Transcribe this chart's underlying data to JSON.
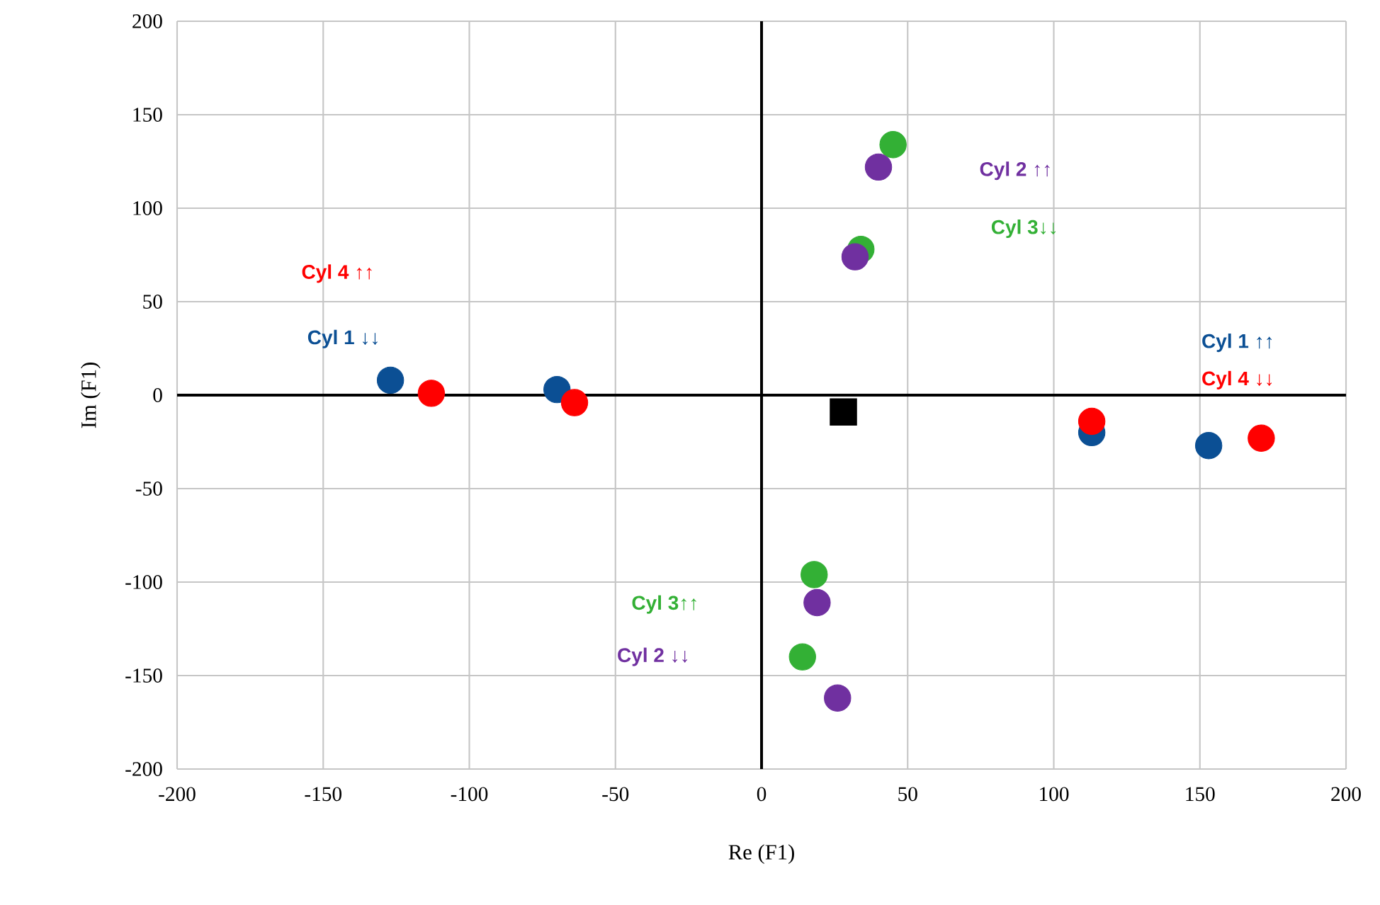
{
  "chart_data": {
    "type": "scatter",
    "xlabel": "Re (F1)",
    "ylabel": "Im (F1)",
    "xlim": [
      -200,
      200
    ],
    "ylim": [
      -200,
      200
    ],
    "xticks": [
      -200,
      -150,
      -100,
      -50,
      0,
      50,
      100,
      150,
      200
    ],
    "yticks": [
      -200,
      -150,
      -100,
      -50,
      0,
      50,
      100,
      150,
      200
    ],
    "grid": true,
    "series": [
      {
        "color": "#0b4f94",
        "x": [
          -127,
          -70,
          113,
          153
        ],
        "values": [
          8,
          3,
          -20,
          -27
        ]
      },
      {
        "color": "#ff0000",
        "x": [
          -113,
          -64,
          113,
          171
        ],
        "values": [
          1,
          -4,
          -14,
          -23
        ]
      },
      {
        "color": "#33b035",
        "x": [
          45,
          34,
          18,
          14
        ],
        "values": [
          134,
          78,
          -96,
          -140
        ]
      },
      {
        "color": "#7030a0",
        "x": [
          40,
          32,
          19,
          26
        ],
        "values": [
          122,
          74,
          -111,
          -162
        ]
      },
      {
        "color": "#000000",
        "marker": "square",
        "x": [
          28
        ],
        "values": [
          -9
        ]
      }
    ],
    "annotations": [
      "Cyl 4 ↑↑",
      "Cyl 1 ↓↓",
      "Cyl 2 ↑↑",
      "Cyl 3↓↓",
      "Cyl 3↑↑",
      "Cyl 2 ↓↓",
      "Cyl 1 ↑↑",
      "Cyl 4 ↓↓"
    ]
  }
}
